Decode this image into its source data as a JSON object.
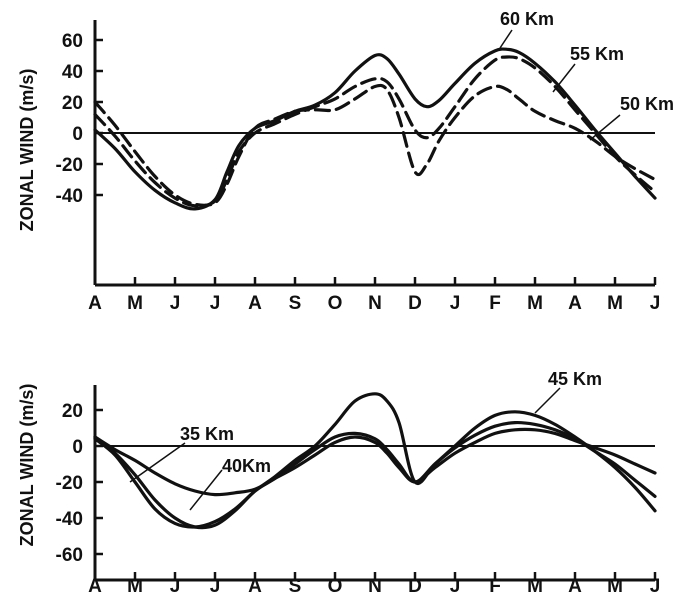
{
  "chart_data": [
    {
      "type": "line",
      "ylabel": "ZONAL WIND (m/s)",
      "xlabel": "",
      "title": "",
      "x_ticks": [
        "A",
        "M",
        "J",
        "J",
        "A",
        "S",
        "O",
        "N",
        "D",
        "J",
        "F",
        "M",
        "A",
        "M",
        "J"
      ],
      "y_ticks": [
        "60",
        "40",
        "20",
        "0",
        "-20",
        "-40"
      ],
      "ylim": [
        -60,
        70
      ],
      "grid": false,
      "series": [
        {
          "name": "60 Km",
          "style": "solid",
          "label_text": "60 Km",
          "x": [
            0,
            0.5,
            1,
            1.5,
            2,
            2.5,
            3,
            3.3,
            3.6,
            4,
            4.5,
            5,
            5.5,
            6,
            6.5,
            7,
            7.3,
            7.6,
            8,
            8.3,
            8.6,
            9,
            9.5,
            10,
            10.3,
            10.6,
            11,
            11.5,
            12,
            12.5,
            13,
            13.5,
            14
          ],
          "y": [
            2,
            -10,
            -25,
            -37,
            -45,
            -49,
            -43,
            -25,
            -8,
            3,
            8,
            14,
            18,
            26,
            40,
            50,
            48,
            38,
            22,
            17,
            21,
            32,
            45,
            53,
            54,
            52,
            45,
            33,
            18,
            2,
            -13,
            -28,
            -42
          ]
        },
        {
          "name": "55 Km",
          "style": "dashed",
          "label_text": "55 Km",
          "x": [
            0,
            0.5,
            1,
            1.5,
            2,
            2.5,
            3,
            3.3,
            3.6,
            4,
            4.5,
            5,
            5.5,
            6,
            6.5,
            7,
            7.3,
            7.6,
            8,
            8.3,
            8.6,
            9,
            9.5,
            10,
            10.3,
            10.6,
            11,
            11.5,
            12,
            12.5,
            13,
            13.5,
            14
          ],
          "y": [
            12,
            -2,
            -18,
            -32,
            -42,
            -47,
            -44,
            -30,
            -12,
            0,
            6,
            12,
            17,
            22,
            30,
            35,
            33,
            22,
            2,
            -3,
            3,
            17,
            35,
            47,
            49,
            48,
            42,
            30,
            15,
            0,
            -15,
            -27,
            -38
          ]
        },
        {
          "name": "50 Km",
          "style": "dashed",
          "label_text": "50 Km",
          "x": [
            0,
            0.5,
            1,
            1.5,
            2,
            2.5,
            3,
            3.3,
            3.6,
            4,
            4.5,
            5,
            5.5,
            6,
            6.5,
            7,
            7.3,
            7.6,
            8,
            8.3,
            8.6,
            9,
            9.5,
            10,
            10.3,
            10.6,
            11,
            11.5,
            12,
            12.5,
            13,
            13.5,
            14
          ],
          "y": [
            20,
            5,
            -12,
            -28,
            -40,
            -46,
            -45,
            -33,
            -15,
            3,
            9,
            14,
            15,
            15,
            22,
            30,
            28,
            10,
            -25,
            -20,
            -5,
            10,
            24,
            30,
            28,
            22,
            14,
            8,
            3,
            -5,
            -15,
            -23,
            -30
          ]
        }
      ]
    },
    {
      "type": "line",
      "ylabel": "ZONAL WIND (m/s)",
      "xlabel": "",
      "title": "",
      "x_ticks": [
        "A",
        "M",
        "J",
        "J",
        "A",
        "S",
        "O",
        "N",
        "D",
        "J",
        "F",
        "M",
        "A",
        "M",
        "J"
      ],
      "y_ticks": [
        "20",
        "0",
        "-20",
        "-40",
        "-60"
      ],
      "ylim": [
        -60,
        30
      ],
      "grid": false,
      "series": [
        {
          "name": "45 Km",
          "label_text": "45 Km",
          "x": [
            0,
            0.5,
            1,
            1.5,
            2,
            2.5,
            3,
            3.5,
            4,
            4.5,
            5,
            5.5,
            6,
            6.5,
            7,
            7.3,
            7.6,
            8,
            8.5,
            9,
            9.5,
            10,
            10.5,
            11,
            11.5,
            12,
            12.5,
            13,
            13.5,
            14
          ],
          "y": [
            4,
            -5,
            -20,
            -35,
            -43,
            -45,
            -42,
            -35,
            -25,
            -17,
            -8,
            0,
            12,
            25,
            29,
            25,
            13,
            -20,
            -10,
            0,
            10,
            17,
            19,
            17,
            12,
            5,
            -3,
            -12,
            -23,
            -36
          ]
        },
        {
          "name": "40 Km",
          "label_text": "40Km",
          "x": [
            0,
            0.5,
            1,
            1.5,
            2,
            2.5,
            3,
            3.5,
            4,
            4.5,
            5,
            5.5,
            6,
            6.5,
            7,
            7.3,
            7.6,
            8,
            8.5,
            9,
            9.5,
            10,
            10.5,
            11,
            11.5,
            12,
            12.5,
            13,
            13.5,
            14
          ],
          "y": [
            5,
            -4,
            -16,
            -30,
            -40,
            -45,
            -44,
            -36,
            -25,
            -18,
            -10,
            -2,
            5,
            7,
            4,
            -2,
            -10,
            -20,
            -10,
            -1,
            6,
            11,
            13,
            12,
            9,
            4,
            -3,
            -10,
            -19,
            -28
          ]
        },
        {
          "name": "35 Km",
          "label_text": "35 Km",
          "x": [
            0,
            0.5,
            1,
            1.5,
            2,
            2.5,
            3,
            3.5,
            4,
            4.5,
            5,
            5.5,
            6,
            6.5,
            7,
            7.3,
            7.6,
            8,
            8.5,
            9,
            9.5,
            10,
            10.5,
            11,
            11.5,
            12,
            12.5,
            13,
            13.5,
            14
          ],
          "y": [
            5,
            -2,
            -8,
            -15,
            -21,
            -25,
            -27,
            -26,
            -24,
            -18,
            -12,
            -5,
            2,
            5,
            2,
            -4,
            -12,
            -20,
            -12,
            -4,
            2,
            7,
            9,
            9,
            7,
            3,
            -1,
            -5,
            -10,
            -15
          ]
        }
      ]
    }
  ]
}
